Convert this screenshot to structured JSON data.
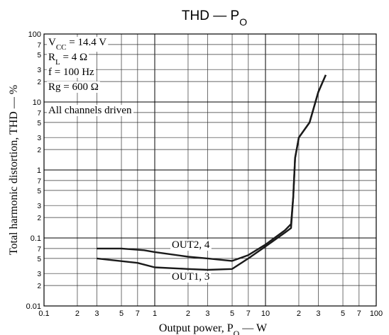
{
  "chart_data": {
    "type": "line",
    "title": [
      {
        "text": "THD — P"
      },
      {
        "text": "O",
        "sub": true
      }
    ],
    "xlabel": [
      {
        "text": "Output power, P"
      },
      {
        "text": "O",
        "sub": true
      },
      {
        "text": " — W"
      }
    ],
    "ylabel": [
      {
        "text": "Total harmonic distortion, THD — %"
      }
    ],
    "conditions": [
      [
        {
          "text": "V"
        },
        {
          "text": "CC",
          "sub": true
        },
        {
          "text": " = 14.4 V"
        }
      ],
      [
        {
          "text": "R"
        },
        {
          "text": "L",
          "sub": true
        },
        {
          "text": " = 4 Ω"
        }
      ],
      [
        {
          "text": "f = 100 Hz"
        }
      ],
      [
        {
          "text": "Rg = 600 Ω"
        }
      ],
      [
        {
          "text": "All channels driven"
        }
      ]
    ],
    "xscale": "log",
    "yscale": "log",
    "xlim": [
      0.1,
      100
    ],
    "ylim": [
      0.01,
      100
    ],
    "xticks": [
      0.1,
      {
        "value": 0.2,
        "label": "2"
      },
      {
        "value": 0.3,
        "label": "3"
      },
      {
        "value": 0.5,
        "label": "5"
      },
      {
        "value": 0.7,
        "label": "7"
      },
      1,
      {
        "value": 2,
        "label": "2"
      },
      {
        "value": 3,
        "label": "3"
      },
      {
        "value": 5,
        "label": "5"
      },
      {
        "value": 7,
        "label": "7"
      },
      10,
      {
        "value": 20,
        "label": "2"
      },
      {
        "value": 30,
        "label": "3"
      },
      {
        "value": 50,
        "label": "5"
      },
      {
        "value": 70,
        "label": "7"
      },
      100
    ],
    "yticks": [
      0.01,
      {
        "value": 0.02,
        "label": "2"
      },
      {
        "value": 0.03,
        "label": "3"
      },
      {
        "value": 0.05,
        "label": "5"
      },
      {
        "value": 0.07,
        "label": "7"
      },
      0.1,
      {
        "value": 0.2,
        "label": "2"
      },
      {
        "value": 0.3,
        "label": "3"
      },
      {
        "value": 0.5,
        "label": "5"
      },
      {
        "value": 0.7,
        "label": "7"
      },
      1,
      {
        "value": 2,
        "label": "2"
      },
      {
        "value": 3,
        "label": "3"
      },
      {
        "value": 5,
        "label": "5"
      },
      {
        "value": 7,
        "label": "7"
      },
      10,
      {
        "value": 20,
        "label": "2"
      },
      {
        "value": 30,
        "label": "3"
      },
      {
        "value": 50,
        "label": "5"
      },
      {
        "value": 70,
        "label": "7"
      },
      100
    ],
    "grid": true,
    "series": [
      {
        "name": "OUT2, 4",
        "color": "#1a1a1a",
        "x": [
          0.3,
          0.5,
          0.8,
          1,
          2,
          3,
          5,
          7,
          10,
          15,
          17,
          17.8,
          18.5,
          20,
          25,
          30,
          35
        ],
        "values": [
          0.07,
          0.07,
          0.066,
          0.062,
          0.053,
          0.05,
          0.046,
          0.056,
          0.08,
          0.13,
          0.16,
          0.4,
          1.5,
          3,
          5,
          14,
          25
        ]
      },
      {
        "name": "OUT1, 3",
        "color": "#1a1a1a",
        "x": [
          0.3,
          0.7,
          1,
          2,
          3,
          5,
          7,
          10,
          15,
          17,
          17.8,
          18.5,
          20,
          25,
          30,
          35
        ],
        "values": [
          0.05,
          0.043,
          0.037,
          0.035,
          0.034,
          0.035,
          0.05,
          0.075,
          0.12,
          0.14,
          0.4,
          1.5,
          3,
          5,
          14,
          25
        ]
      }
    ]
  }
}
